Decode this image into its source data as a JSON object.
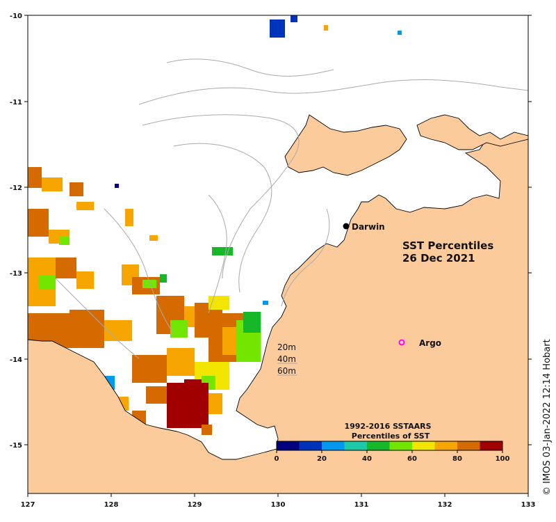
{
  "map": {
    "title_line1": "SST Percentiles",
    "title_line2": "26 Dec 2021",
    "credit": "© IMOS 03-Jan-2022 12:14 Hobart",
    "colors": {
      "land": "#fccb9c",
      "ocean": "#ffffff",
      "contour": "#aaaaaa",
      "coast": "#000000"
    }
  },
  "axes": {
    "x_ticks": [
      "127",
      "128",
      "129",
      "130",
      "131",
      "132",
      "133"
    ],
    "y_ticks": [
      "-10",
      "-11",
      "-12",
      "-13",
      "-14",
      "-15"
    ]
  },
  "places": {
    "darwin": {
      "label": "Darwin",
      "lon": 130.84,
      "lat": -12.46
    },
    "argo": {
      "label": "Argo",
      "lon": 131.49,
      "lat": -13.81
    }
  },
  "depth_contours": [
    "20m",
    "40m",
    "60m"
  ],
  "legend": {
    "title_line1": "1992-2016 SSTAARS",
    "title_line2": "Percentiles of SST",
    "colors": [
      "#00007f",
      "#0033bb",
      "#0099ee",
      "#1dc9a6",
      "#16b82a",
      "#73e600",
      "#f2e600",
      "#f7a500",
      "#d46a00",
      "#a10000"
    ],
    "ticks": [
      "0",
      "20",
      "40",
      "60",
      "80",
      "100"
    ]
  }
}
